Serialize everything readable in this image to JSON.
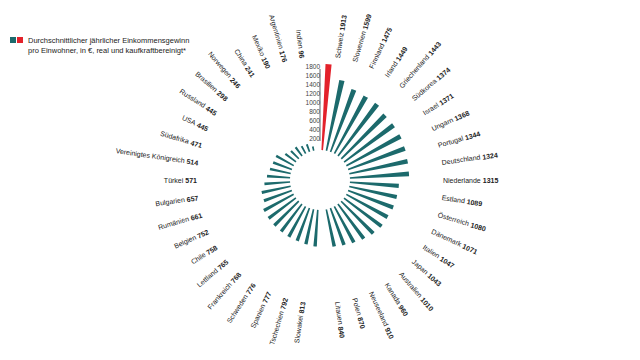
{
  "chart_data": {
    "type": "radial_bar",
    "legend": "top-left",
    "data_labels": true,
    "categories": [
      null,
      "Schweiz",
      "Slowenien",
      "Finnland",
      "Irland",
      "Griechenland",
      "Südkorea",
      "Israel",
      "Ungarn",
      "Portugal",
      "Deutschland",
      "Niederlande",
      "Estland",
      "Österreich",
      "Dänemark",
      "Italien",
      "Japan",
      "Australien",
      "Kanada",
      "Neuseeland",
      "Polen",
      "Litauen",
      null,
      "Slowakei",
      "Tschechien",
      "Spanien",
      "Schweden",
      "Frankreich",
      "Lettland",
      "Chile",
      "Belgien",
      "Rumänien",
      "Bulgarien",
      "Türkei",
      "Vereinigtes Königreich",
      "Südafrika",
      "USA",
      "Russland",
      "Brasilien",
      "Norwegen",
      "China",
      "Mexiko",
      "Argentinien",
      "Indien"
    ],
    "series": [
      {
        "name": "Durchschnittlicher jährlicher Einkommensgewinn pro Einwohner, in €, real und kaufkraftbereinigt*",
        "values": [
          null,
          1913,
          1599,
          1475,
          1449,
          1443,
          1374,
          1371,
          1368,
          1344,
          1324,
          1315,
          1089,
          1080,
          1071,
          1047,
          1043,
          1010,
          960,
          910,
          870,
          840,
          null,
          813,
          792,
          777,
          776,
          768,
          765,
          758,
          752,
          661,
          657,
          571,
          514,
          471,
          445,
          445,
          298,
          246,
          241,
          190,
          176,
          96
        ],
        "colors": [
          "#1c6a6c",
          "#e3222b",
          "#1c6a6c",
          "#1c6a6c",
          "#1c6a6c",
          "#1c6a6c",
          "#1c6a6c",
          "#1c6a6c",
          "#1c6a6c",
          "#1c6a6c",
          "#1c6a6c",
          "#1c6a6c",
          "#1c6a6c",
          "#1c6a6c",
          "#1c6a6c",
          "#1c6a6c",
          "#1c6a6c",
          "#1c6a6c",
          "#1c6a6c",
          "#1c6a6c",
          "#1c6a6c",
          "#1c6a6c",
          "#1c6a6c",
          "#1c6a6c",
          "#1c6a6c",
          "#1c6a6c",
          "#1c6a6c",
          "#1c6a6c",
          "#1c6a6c",
          "#1c6a6c",
          "#1c6a6c",
          "#1c6a6c",
          "#1c6a6c",
          "#1c6a6c",
          "#1c6a6c",
          "#1c6a6c",
          "#1c6a6c",
          "#1c6a6c",
          "#1c6a6c",
          "#1c6a6c",
          "#1c6a6c",
          "#1c6a6c",
          "#1c6a6c",
          "#1c6a6c"
        ]
      }
    ],
    "ylim": [
      0,
      2000
    ],
    "yticks": [
      200,
      400,
      600,
      800,
      1000,
      1200,
      1400,
      1600,
      1800
    ]
  }
}
